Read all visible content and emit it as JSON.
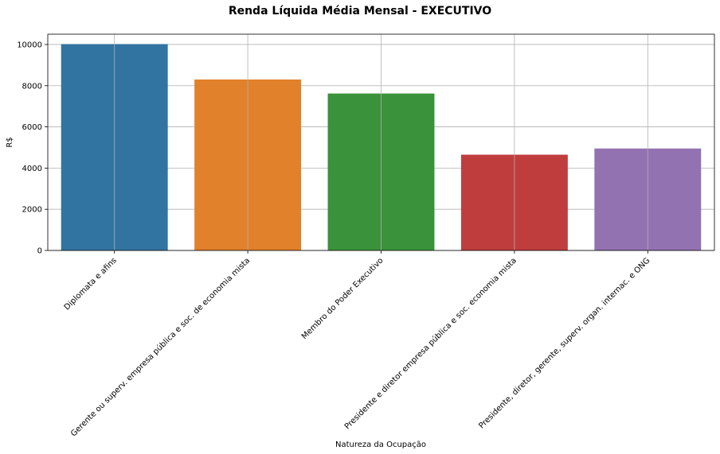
{
  "chart_data": {
    "type": "bar",
    "title": "Renda Líquida Média Mensal - EXECUTIVO",
    "xlabel": "Natureza da Ocupação",
    "ylabel": "R$",
    "categories": [
      "Diplomata e afins",
      "Gerente ou superv. empresa pública e soc. de economia mista",
      "Membro do Poder Executivo",
      "Presidente e diretor empresa pública e soc. economia mista",
      "Presidente, diretor, gerente, superv. organ. internac. e ONG"
    ],
    "values": [
      10020,
      8300,
      7620,
      4650,
      4950
    ],
    "colors": [
      "#3274a1",
      "#e1812c",
      "#3a923a",
      "#c03d3e",
      "#9372b2"
    ],
    "ylim": [
      0,
      10500
    ],
    "yticks": [
      0,
      2000,
      4000,
      6000,
      8000,
      10000
    ],
    "grid": true
  }
}
